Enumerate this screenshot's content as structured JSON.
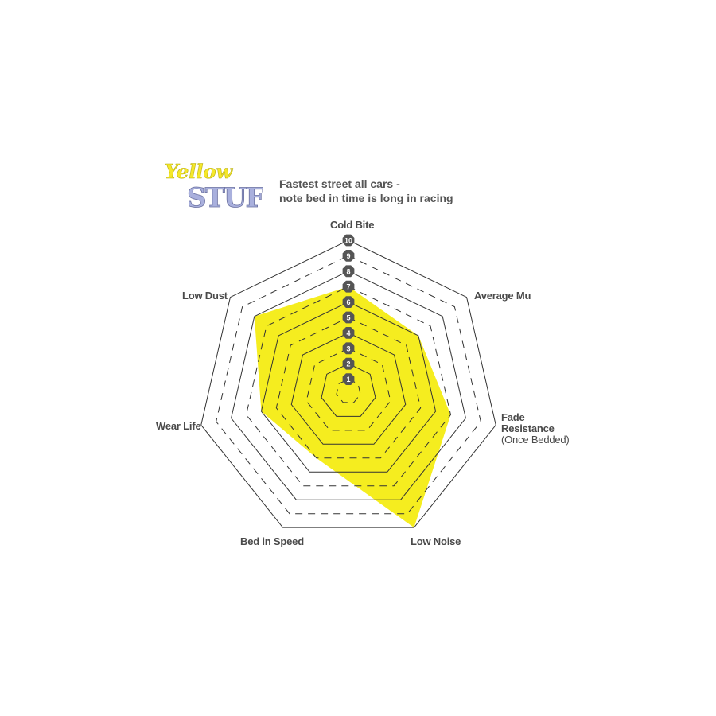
{
  "logo": {
    "line1": "Yellow",
    "line2": "STUFF",
    "colors": {
      "yellow": "#f5e82a",
      "lavender": "#a9b0dd"
    }
  },
  "title": {
    "line1": "Fastest street all cars -",
    "line2": "note bed in time is long in racing"
  },
  "chart_data": {
    "type": "radar",
    "title": "Fastest street all cars - note bed in time is long in racing",
    "axes": [
      "Cold Bite",
      "Average Mu",
      "Fade Resistance (Once Bedded)",
      "Low Noise",
      "Bed in Speed",
      "Wear Life",
      "Low Dust"
    ],
    "axis_labels": {
      "cold_bite": "Cold Bite",
      "average_mu": "Average Mu",
      "fade1": "Fade",
      "fade2": "Resistance",
      "fade3": "(Once Bedded)",
      "low_noise": "Low Noise",
      "bed_in": "Bed in Speed",
      "wear_life": "Wear Life",
      "low_dust": "Low Dust"
    },
    "scale": {
      "min": 0,
      "max": 10,
      "ticks": [
        "1",
        "2",
        "3",
        "4",
        "5",
        "6",
        "7",
        "8",
        "9",
        "10"
      ]
    },
    "values": [
      7,
      6,
      7,
      10,
      5,
      6,
      8
    ],
    "fill_color": "#f5ed1f",
    "grid": "nested heptagons, alternating solid/dashed"
  }
}
